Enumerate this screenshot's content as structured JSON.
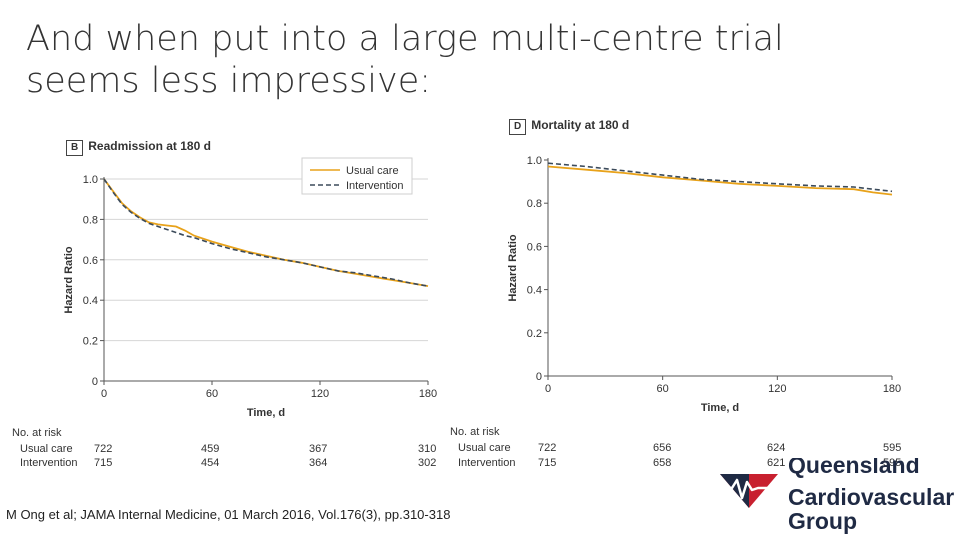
{
  "slide": {
    "title_line1": "And when put into a large multi-centre trial",
    "title_line2": "seems less impressive:",
    "citation": "M Ong et al; JAMA Internal Medicine, 01 March 2016, Vol.176(3), pp.310-318"
  },
  "logo": {
    "line1": "Queensland",
    "line2": "Cardiovascular",
    "line3": "Group",
    "colors": {
      "navy": "#1f2a44",
      "red": "#c8202f"
    }
  },
  "colors": {
    "usual_care": "#e8a21a",
    "intervention": "#3b4a5a"
  },
  "chart_data": [
    {
      "type": "line",
      "panel": "B",
      "title": "Readmission at 180 d",
      "xlabel": "Time, d",
      "ylabel": "Hazard Ratio",
      "xlim": [
        0,
        180
      ],
      "ylim": [
        0,
        1.0
      ],
      "xticks": [
        0,
        60,
        120,
        180
      ],
      "yticks": [
        0,
        0.2,
        0.4,
        0.6,
        0.8,
        1.0
      ],
      "ytick_labels": [
        "0",
        "0.2",
        "0.4",
        "0.6",
        "0.8",
        "1.0"
      ],
      "legend": "top-right",
      "grid": true,
      "series": [
        {
          "name": "Usual care",
          "style": "solid",
          "x": [
            0,
            5,
            10,
            15,
            20,
            25,
            30,
            35,
            40,
            45,
            50,
            60,
            70,
            80,
            90,
            100,
            110,
            120,
            130,
            140,
            150,
            160,
            170,
            180
          ],
          "y": [
            1.0,
            0.94,
            0.88,
            0.84,
            0.81,
            0.785,
            0.775,
            0.77,
            0.765,
            0.745,
            0.72,
            0.69,
            0.665,
            0.64,
            0.62,
            0.6,
            0.585,
            0.565,
            0.545,
            0.53,
            0.515,
            0.5,
            0.485,
            0.47
          ]
        },
        {
          "name": "Intervention",
          "style": "dashed",
          "x": [
            0,
            5,
            10,
            15,
            20,
            25,
            30,
            35,
            40,
            45,
            50,
            60,
            70,
            80,
            90,
            100,
            110,
            120,
            130,
            140,
            150,
            160,
            170,
            180
          ],
          "y": [
            1.0,
            0.935,
            0.875,
            0.835,
            0.805,
            0.78,
            0.765,
            0.75,
            0.735,
            0.72,
            0.71,
            0.68,
            0.655,
            0.635,
            0.615,
            0.6,
            0.585,
            0.565,
            0.545,
            0.535,
            0.52,
            0.505,
            0.485,
            0.47
          ]
        }
      ],
      "risk_table": {
        "header": "No. at risk",
        "rows": [
          {
            "label": "Usual care",
            "values": [
              "722",
              "459",
              "367",
              "310"
            ]
          },
          {
            "label": "Intervention",
            "values": [
              "715",
              "454",
              "364",
              "302"
            ]
          }
        ]
      }
    },
    {
      "type": "line",
      "panel": "D",
      "title": "Mortality at 180 d",
      "xlabel": "Time, d",
      "ylabel": "Hazard Ratio",
      "xlim": [
        0,
        180
      ],
      "ylim": [
        0,
        1.0
      ],
      "xticks": [
        0,
        60,
        120,
        180
      ],
      "yticks": [
        0,
        0.2,
        0.4,
        0.6,
        0.8,
        1.0
      ],
      "ytick_labels": [
        "0",
        "0.2",
        "0.4",
        "0.6",
        "0.8",
        "1.0"
      ],
      "grid": false,
      "series": [
        {
          "name": "Usual care",
          "style": "solid",
          "x": [
            0,
            20,
            40,
            60,
            80,
            100,
            120,
            140,
            160,
            170,
            180
          ],
          "y": [
            0.97,
            0.955,
            0.94,
            0.92,
            0.905,
            0.89,
            0.88,
            0.87,
            0.865,
            0.85,
            0.84
          ]
        },
        {
          "name": "Intervention",
          "style": "dashed",
          "x": [
            0,
            20,
            40,
            60,
            80,
            100,
            120,
            140,
            160,
            170,
            180
          ],
          "y": [
            0.985,
            0.97,
            0.95,
            0.93,
            0.91,
            0.9,
            0.89,
            0.88,
            0.875,
            0.865,
            0.855
          ]
        }
      ],
      "risk_table": {
        "header": "No. at risk",
        "rows": [
          {
            "label": "Usual care",
            "values": [
              "722",
              "656",
              "624",
              "595"
            ]
          },
          {
            "label": "Intervention",
            "values": [
              "715",
              "658",
              "621",
              "595"
            ]
          }
        ]
      }
    }
  ]
}
